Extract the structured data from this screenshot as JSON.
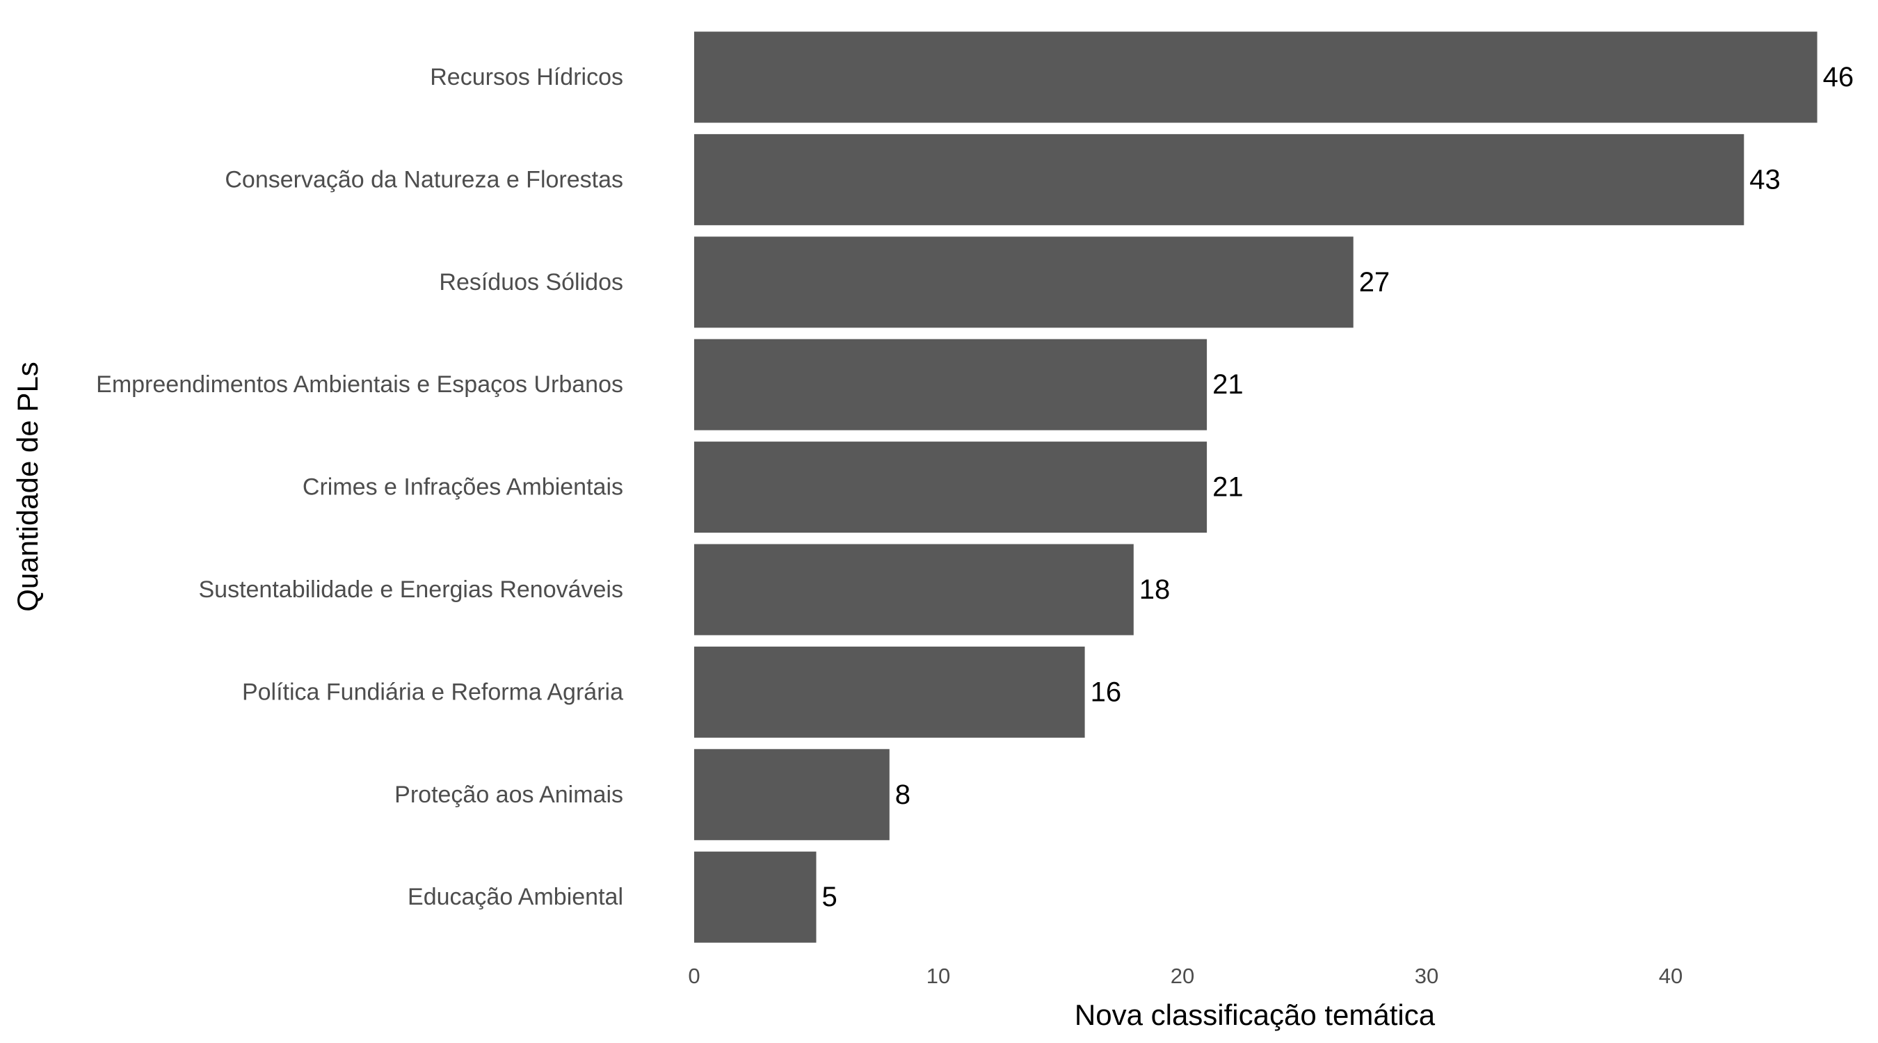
{
  "chart_data": {
    "type": "bar",
    "orientation": "horizontal",
    "categories": [
      "Recursos Hídricos",
      "Conservação da Natureza e Florestas",
      "Resíduos Sólidos",
      "Empreendimentos Ambientais e Espaços Urbanos",
      "Crimes e Infrações Ambientais",
      "Sustentabilidade e Energias Renováveis",
      "Política Fundiária e Reforma Agrária",
      "Proteção aos Animais",
      "Educação Ambiental"
    ],
    "values": [
      46,
      43,
      27,
      21,
      21,
      18,
      16,
      8,
      5
    ],
    "data_labels": [
      "46",
      "43",
      "27",
      "21",
      "21",
      "18",
      "16",
      "8",
      "5"
    ],
    "xlabel": "Nova classificação temática",
    "ylabel": "Quantidade de PLs",
    "xlim": [
      0,
      46
    ],
    "xticks": [
      0,
      10,
      20,
      30,
      40
    ],
    "xtick_labels": [
      "0",
      "10",
      "20",
      "30",
      "40"
    ],
    "bar_color": "#595959",
    "grid": false,
    "legend": false
  }
}
